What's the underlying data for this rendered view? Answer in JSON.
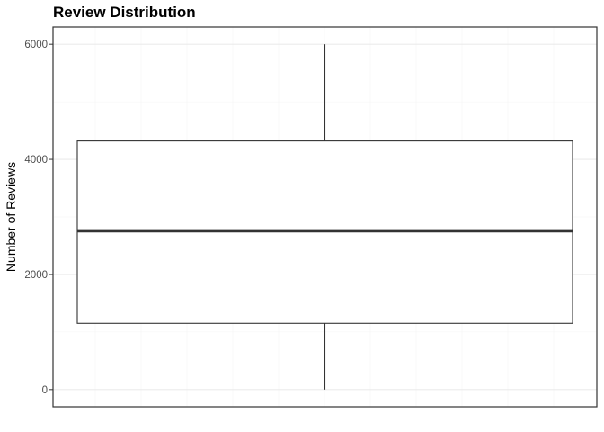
{
  "chart_data": {
    "type": "box",
    "title": "Review Distribution",
    "xlabel": "",
    "ylabel": "Number of Reviews",
    "ylim": [
      -300,
      6300
    ],
    "yticks": [
      0,
      2000,
      4000,
      6000
    ],
    "ytick_labels": [
      "0",
      "2000",
      "4000",
      "6000"
    ],
    "grid": true,
    "box": {
      "min": 0,
      "q1": 1150,
      "median": 2750,
      "q3": 4320,
      "max": 6000
    },
    "colors": {
      "box_fill": "#ffffff",
      "box_stroke": "#333333",
      "grid_major": "#ebebeb",
      "grid_minor": "#f5f5f5",
      "panel_border": "#333333"
    }
  }
}
